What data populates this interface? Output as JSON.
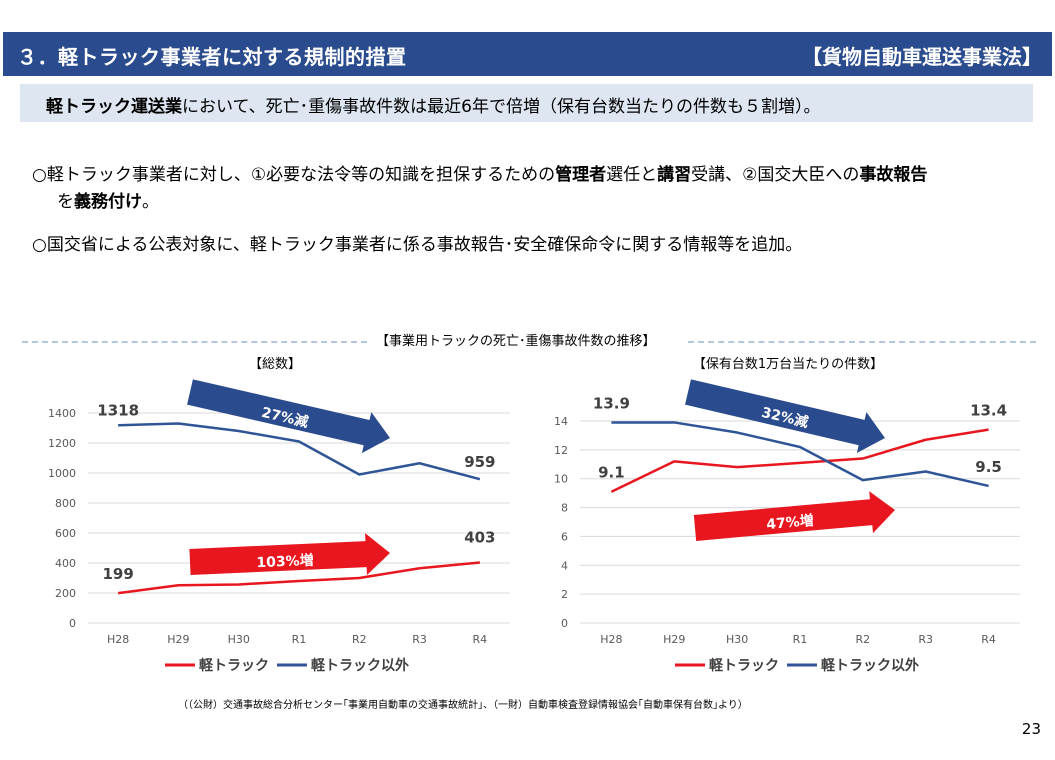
{
  "header": {
    "title": "３．軽トラック事業者に対する規制的措置",
    "law": "【貨物自動車運送事業法】"
  },
  "summary": {
    "bold": "軽トラック運送業",
    "rest": "において、死亡･重傷事故件数は最近6年で倍増（保有台数当たりの件数も５割増）。"
  },
  "bullets": {
    "b1": [
      "○軽トラック事業者に対し、①必要な法令等の知識を担保するための",
      "管理者",
      "選任と",
      "講習",
      "受講、②国交大臣への",
      "事故報告",
      "を",
      "義務付け",
      "。"
    ],
    "b2": "○国交省による公表対象に、軽トラック事業者に係る事故報告･安全確保命令に関する情報等を追加。"
  },
  "charts_title": "【事業用トラックの死亡･重傷事故件数の推移】",
  "colors": {
    "light": "#e8161e",
    "other": "#2f5597",
    "arrow_blue": "#2a4b8d",
    "arrow_red": "#e8161e"
  },
  "chart_data": [
    {
      "type": "line",
      "title": "【総数】",
      "categories": [
        "H28",
        "H29",
        "H30",
        "R1",
        "R2",
        "R3",
        "R4"
      ],
      "ylim": [
        0,
        1400
      ],
      "yticks": [
        0,
        200,
        400,
        600,
        800,
        1000,
        1200,
        1400
      ],
      "grid": true,
      "series": [
        {
          "name": "軽トラック",
          "values": [
            199,
            252,
            257,
            280,
            300,
            365,
            403
          ]
        },
        {
          "name": "軽トラック以外",
          "values": [
            1318,
            1330,
            1280,
            1210,
            990,
            1065,
            959
          ]
        }
      ],
      "data_labels": [
        {
          "series": 1,
          "index": 0,
          "text": "1318"
        },
        {
          "series": 1,
          "index": 6,
          "text": "959"
        },
        {
          "series": 0,
          "index": 0,
          "text": "199"
        },
        {
          "series": 0,
          "index": 6,
          "text": "403"
        }
      ],
      "annotations": [
        {
          "text": "27%減",
          "series": 1
        },
        {
          "text": "103%増",
          "series": 0
        }
      ],
      "legend": "bottom"
    },
    {
      "type": "line",
      "title": "【保有台数1万台当たりの件数】",
      "categories": [
        "H28",
        "H29",
        "H30",
        "R1",
        "R2",
        "R3",
        "R4"
      ],
      "ylim": [
        0,
        14
      ],
      "yticks": [
        0,
        2,
        4,
        6,
        8,
        10,
        12,
        14
      ],
      "grid": true,
      "series": [
        {
          "name": "軽トラック",
          "values": [
            9.1,
            11.2,
            10.8,
            11.1,
            11.4,
            12.7,
            13.4
          ]
        },
        {
          "name": "軽トラック以外",
          "values": [
            13.9,
            13.9,
            13.2,
            12.2,
            9.9,
            10.5,
            9.5
          ]
        }
      ],
      "data_labels": [
        {
          "series": 1,
          "index": 0,
          "text": "13.9"
        },
        {
          "series": 0,
          "index": 6,
          "text": "13.4"
        },
        {
          "series": 0,
          "index": 0,
          "text": "9.1"
        },
        {
          "series": 1,
          "index": 6,
          "text": "9.5"
        }
      ],
      "annotations": [
        {
          "text": "32%減",
          "series": 1
        },
        {
          "text": "47%増",
          "series": 0
        }
      ],
      "legend": "bottom"
    }
  ],
  "source": "（（公財）交通事故総合分析センター｢事業用自動車の交通事故統計｣、（一財）自動車検査登録情報協会｢自動車保有台数｣より）",
  "page_number": "23"
}
